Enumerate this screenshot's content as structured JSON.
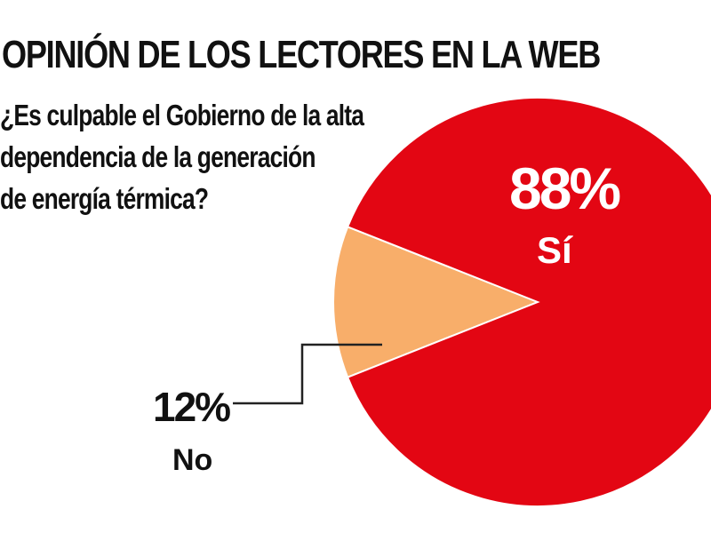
{
  "chart_data": {
    "type": "pie",
    "title": "OPINIÓN DE LOS LECTORES EN LA WEB",
    "question_lines": [
      "¿Es culpable el Gobierno de la alta",
      "dependencia de la generación",
      "de energía térmica?"
    ],
    "slices": [
      {
        "label": "Sí",
        "value": 88,
        "value_label": "88%",
        "color": "#e30613"
      },
      {
        "label": "No",
        "value": 12,
        "value_label": "12%",
        "color": "#f8ae6a"
      }
    ]
  }
}
